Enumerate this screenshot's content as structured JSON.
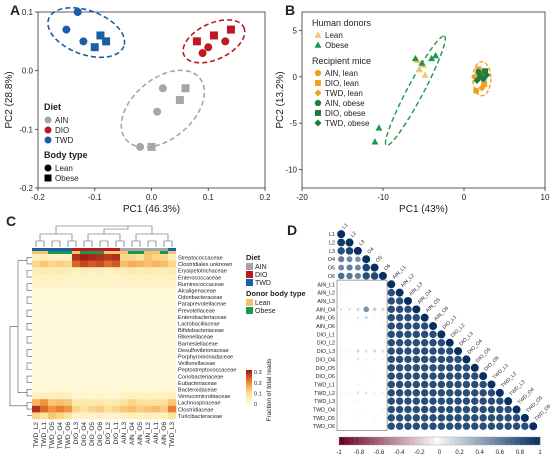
{
  "panel_labels": {
    "a": "A",
    "b": "B",
    "c": "C",
    "d": "D"
  },
  "chart_data": [
    {
      "id": "A",
      "type": "scatter",
      "xlabel": "PC1 (46.3%)",
      "ylabel": "PC2 (28.8%)",
      "xlim": [
        -0.2,
        0.2
      ],
      "ylim": [
        -0.2,
        0.1
      ],
      "xticks": [
        "-0.2",
        "-0.1",
        "0.0",
        "0.1",
        "0.2"
      ],
      "yticks": [
        "-0.2",
        "-0.1",
        "0.0",
        "0.1"
      ],
      "colors": {
        "AIN": "#a6a6a6",
        "DIO": "#c0181e",
        "TWD": "#1a5ea8"
      },
      "legend": {
        "title1": "Diet",
        "diet": [
          "AIN",
          "DIO",
          "TWD"
        ],
        "title2": "Body type",
        "body": [
          "Lean",
          "Obese"
        ]
      },
      "series": [
        {
          "name": "AIN",
          "points": [
            [
              0.02,
              -0.03,
              "circle"
            ],
            [
              0.01,
              -0.07,
              "circle"
            ],
            [
              -0.02,
              -0.13,
              "circle"
            ],
            [
              0.0,
              -0.13,
              "square"
            ],
            [
              0.05,
              -0.05,
              "square"
            ],
            [
              0.06,
              -0.03,
              "square"
            ]
          ]
        },
        {
          "name": "DIO",
          "points": [
            [
              0.1,
              0.04,
              "circle"
            ],
            [
              0.09,
              0.03,
              "circle"
            ],
            [
              0.13,
              0.05,
              "circle"
            ],
            [
              0.11,
              0.06,
              "square"
            ],
            [
              0.14,
              0.07,
              "square"
            ],
            [
              0.08,
              0.05,
              "square"
            ]
          ]
        },
        {
          "name": "TWD",
          "points": [
            [
              -0.15,
              0.07,
              "circle"
            ],
            [
              -0.12,
              0.05,
              "circle"
            ],
            [
              -0.13,
              0.1,
              "circle"
            ],
            [
              -0.09,
              0.06,
              "square"
            ],
            [
              -0.1,
              0.04,
              "square"
            ],
            [
              -0.08,
              0.05,
              "square"
            ]
          ]
        }
      ]
    },
    {
      "id": "B",
      "type": "scatter",
      "xlabel": "PC1 (43%)",
      "ylabel": "PC2 (13.2%)",
      "xlim": [
        -20,
        10
      ],
      "ylim": [
        -12,
        7
      ],
      "xticks": [
        "-20",
        "-10",
        "0",
        "10"
      ],
      "yticks": [
        "-10",
        "-5",
        "0",
        "5"
      ],
      "legend": {
        "title1": "Human donors",
        "donors": [
          "Lean",
          "Obese"
        ],
        "title2": "Recipient mice",
        "mice": [
          "AIN, lean",
          "DIO, lean",
          "TWD, lean",
          "AIN, obese",
          "DIO, obese",
          "TWD, obese"
        ]
      },
      "series": [
        {
          "name": "Lean",
          "points": [
            [
              -5.5,
              0.8
            ],
            [
              -5.0,
              1.3
            ],
            [
              -5.8,
              1.8
            ],
            [
              -4.8,
              0.2
            ]
          ]
        },
        {
          "name": "Obese",
          "points": [
            [
              -10.5,
              -5.5
            ],
            [
              -11.0,
              -7.0
            ],
            [
              -4.0,
              2.0
            ],
            [
              -3.5,
              2.3
            ],
            [
              -5.2,
              1.5
            ],
            [
              -6.0,
              2.0
            ]
          ]
        },
        {
          "name": "AIN, lean",
          "points": [
            [
              1.5,
              -1.5
            ],
            [
              2.0,
              0.5
            ]
          ]
        },
        {
          "name": "DIO, lean",
          "points": [
            [
              2.5,
              -0.8
            ],
            [
              1.8,
              0.8
            ]
          ]
        },
        {
          "name": "TWD, lean",
          "points": [
            [
              2.2,
              -1.2
            ],
            [
              1.3,
              0.0
            ]
          ]
        },
        {
          "name": "AIN, obese",
          "points": [
            [
              1.8,
              0.5
            ],
            [
              2.4,
              -0.2
            ]
          ]
        },
        {
          "name": "DIO, obese",
          "points": [
            [
              2.0,
              0.0
            ],
            [
              2.6,
              0.6
            ]
          ]
        },
        {
          "name": "TWD, obese",
          "points": [
            [
              2.8,
              0.2
            ],
            [
              1.6,
              -0.4
            ]
          ]
        }
      ]
    },
    {
      "id": "C",
      "type": "heatmap",
      "rows": [
        "Streptococcaceae",
        "Clostridiales unknown",
        "Erysipelotrichaceae",
        "Enterococcaceae",
        "Ruminococcaceae",
        "Alcaligenaceae",
        "Odoribacteraceae",
        "Paraprevotellaceae",
        "Prevotellaceae",
        "Enterobacteriaceae",
        "Lactobacillaceae",
        "Bifidobacteriaceae",
        "Rikenellaceae",
        "Barnesiellaceae",
        "Desulfovibrionaceae",
        "Porphyromonadaceae",
        "Veillonellaceae",
        "Peptostreptococcaceae",
        "Coriobacteriaceae",
        "Eubacteriaceae",
        "Bacteroidaceae",
        "Verrucomicrobiaceae",
        "Lachnospiraceae",
        "Clostridiaceae",
        "Turicibacteraceae"
      ],
      "columns": [
        "TWD_L2",
        "TWD_L1",
        "TWD_O5",
        "TWD_O4",
        "TWD_O6",
        "DIO_L3",
        "DIO_O4",
        "DIO_O5",
        "DIO_O6",
        "DIO_L2",
        "DIO_L1",
        "AIN_L3",
        "AIN_O4",
        "AIN_O5",
        "AIN_L2",
        "AIN_L1",
        "AIN_O6",
        "TWD_L3"
      ],
      "legend": {
        "title1": "Diet",
        "diet": [
          "AIN",
          "DIO",
          "TWD"
        ],
        "title2": "Donor body type",
        "body": [
          "Lean",
          "Obese"
        ],
        "scale_title": "Fraction of total reads",
        "scale_ticks": [
          "0",
          "0.1",
          "0.2",
          "0.3"
        ]
      },
      "values": [
        [
          0.05,
          0.06,
          0.04,
          0.05,
          0.05,
          0.3,
          0.32,
          0.31,
          0.3,
          0.29,
          0.3,
          0.12,
          0.12,
          0.1,
          0.14,
          0.12,
          0.12,
          0.06
        ],
        [
          0.12,
          0.14,
          0.12,
          0.13,
          0.12,
          0.25,
          0.28,
          0.26,
          0.27,
          0.24,
          0.26,
          0.15,
          0.17,
          0.16,
          0.15,
          0.16,
          0.15,
          0.12
        ],
        [
          0.06,
          0.07,
          0.06,
          0.07,
          0.06,
          0.05,
          0.06,
          0.05,
          0.06,
          0.05,
          0.06,
          0.06,
          0.07,
          0.06,
          0.07,
          0.06,
          0.06,
          0.07
        ],
        [
          0.04,
          0.05,
          0.04,
          0.05,
          0.04,
          0.03,
          0.04,
          0.03,
          0.04,
          0.03,
          0.03,
          0.04,
          0.05,
          0.04,
          0.05,
          0.04,
          0.04,
          0.05
        ],
        [
          0.03,
          0.04,
          0.03,
          0.04,
          0.03,
          0.03,
          0.04,
          0.03,
          0.04,
          0.03,
          0.03,
          0.04,
          0.04,
          0.03,
          0.04,
          0.03,
          0.03,
          0.04
        ],
        [
          0.02,
          0.02,
          0.02,
          0.02,
          0.02,
          0.01,
          0.02,
          0.01,
          0.02,
          0.01,
          0.01,
          0.02,
          0.02,
          0.02,
          0.02,
          0.02,
          0.02,
          0.02
        ],
        [
          0.01,
          0.01,
          0.01,
          0.01,
          0.01,
          0.01,
          0.01,
          0.01,
          0.01,
          0.01,
          0.01,
          0.01,
          0.01,
          0.01,
          0.01,
          0.01,
          0.01,
          0.01
        ],
        [
          0.01,
          0.01,
          0.01,
          0.01,
          0.01,
          0.01,
          0.01,
          0.01,
          0.01,
          0.01,
          0.01,
          0.01,
          0.01,
          0.01,
          0.01,
          0.01,
          0.01,
          0.01
        ],
        [
          0.01,
          0.01,
          0.01,
          0.01,
          0.01,
          0.01,
          0.01,
          0.01,
          0.01,
          0.01,
          0.01,
          0.01,
          0.01,
          0.01,
          0.01,
          0.01,
          0.01,
          0.01
        ],
        [
          0.01,
          0.01,
          0.01,
          0.01,
          0.01,
          0.01,
          0.01,
          0.01,
          0.01,
          0.01,
          0.01,
          0.01,
          0.01,
          0.01,
          0.01,
          0.01,
          0.01,
          0.01
        ],
        [
          0.01,
          0.01,
          0.01,
          0.01,
          0.01,
          0.01,
          0.01,
          0.01,
          0.01,
          0.01,
          0.01,
          0.01,
          0.01,
          0.01,
          0.01,
          0.01,
          0.01,
          0.01
        ],
        [
          0.01,
          0.01,
          0.01,
          0.01,
          0.01,
          0.01,
          0.01,
          0.01,
          0.01,
          0.01,
          0.01,
          0.01,
          0.01,
          0.01,
          0.01,
          0.01,
          0.01,
          0.01
        ],
        [
          0.01,
          0.01,
          0.01,
          0.01,
          0.01,
          0.01,
          0.01,
          0.01,
          0.01,
          0.01,
          0.01,
          0.01,
          0.01,
          0.01,
          0.01,
          0.01,
          0.01,
          0.01
        ],
        [
          0.01,
          0.01,
          0.01,
          0.01,
          0.01,
          0.01,
          0.01,
          0.01,
          0.01,
          0.01,
          0.01,
          0.01,
          0.01,
          0.01,
          0.01,
          0.01,
          0.01,
          0.01
        ],
        [
          0.01,
          0.01,
          0.01,
          0.01,
          0.01,
          0.01,
          0.01,
          0.01,
          0.01,
          0.01,
          0.01,
          0.01,
          0.01,
          0.01,
          0.01,
          0.01,
          0.01,
          0.01
        ],
        [
          0.01,
          0.01,
          0.01,
          0.01,
          0.01,
          0.01,
          0.01,
          0.01,
          0.01,
          0.01,
          0.01,
          0.01,
          0.01,
          0.01,
          0.01,
          0.01,
          0.01,
          0.01
        ],
        [
          0.01,
          0.01,
          0.01,
          0.01,
          0.01,
          0.01,
          0.01,
          0.01,
          0.01,
          0.01,
          0.01,
          0.01,
          0.01,
          0.01,
          0.01,
          0.01,
          0.01,
          0.01
        ],
        [
          0.01,
          0.01,
          0.01,
          0.01,
          0.01,
          0.01,
          0.01,
          0.01,
          0.01,
          0.01,
          0.01,
          0.01,
          0.01,
          0.01,
          0.01,
          0.01,
          0.01,
          0.01
        ],
        [
          0.01,
          0.01,
          0.01,
          0.01,
          0.01,
          0.01,
          0.01,
          0.01,
          0.01,
          0.01,
          0.01,
          0.01,
          0.01,
          0.01,
          0.01,
          0.01,
          0.01,
          0.01
        ],
        [
          0.01,
          0.01,
          0.01,
          0.01,
          0.01,
          0.01,
          0.01,
          0.01,
          0.01,
          0.01,
          0.01,
          0.01,
          0.01,
          0.01,
          0.01,
          0.01,
          0.01,
          0.01
        ],
        [
          0.02,
          0.02,
          0.02,
          0.02,
          0.02,
          0.01,
          0.02,
          0.01,
          0.02,
          0.01,
          0.01,
          0.02,
          0.02,
          0.02,
          0.02,
          0.02,
          0.02,
          0.02
        ],
        [
          0.05,
          0.06,
          0.05,
          0.06,
          0.05,
          0.02,
          0.03,
          0.02,
          0.03,
          0.02,
          0.02,
          0.04,
          0.05,
          0.04,
          0.05,
          0.04,
          0.04,
          0.06
        ],
        [
          0.16,
          0.2,
          0.14,
          0.15,
          0.14,
          0.08,
          0.09,
          0.08,
          0.08,
          0.07,
          0.08,
          0.1,
          0.12,
          0.11,
          0.1,
          0.1,
          0.11,
          0.14
        ],
        [
          0.3,
          0.24,
          0.2,
          0.22,
          0.2,
          0.12,
          0.1,
          0.12,
          0.13,
          0.11,
          0.12,
          0.14,
          0.15,
          0.13,
          0.14,
          0.15,
          0.13,
          0.22
        ],
        [
          0.12,
          0.1,
          0.14,
          0.12,
          0.1,
          0.03,
          0.04,
          0.03,
          0.04,
          0.03,
          0.03,
          0.05,
          0.06,
          0.05,
          0.06,
          0.05,
          0.05,
          0.1
        ]
      ],
      "col_diet": [
        "TWD",
        "TWD",
        "TWD",
        "TWD",
        "TWD",
        "DIO",
        "DIO",
        "DIO",
        "DIO",
        "DIO",
        "DIO",
        "AIN",
        "AIN",
        "AIN",
        "AIN",
        "AIN",
        "AIN",
        "TWD"
      ],
      "col_body": [
        "Lean",
        "Lean",
        "Obese",
        "Obese",
        "Obese",
        "Lean",
        "Obese",
        "Obese",
        "Obese",
        "Lean",
        "Lean",
        "Lean",
        "Obese",
        "Obese",
        "Lean",
        "Lean",
        "Obese",
        "Lean"
      ]
    },
    {
      "id": "D",
      "type": "heatmap",
      "donors": [
        "L1",
        "L2",
        "L3",
        "O4",
        "O5",
        "O6"
      ],
      "mice": [
        "AIN_L1",
        "AIN_L2",
        "AIN_L3",
        "AIN_O4",
        "AIN_O5",
        "AIN_O6",
        "DIO_L1",
        "DIO_L2",
        "DIO_L3",
        "DIO_O4",
        "DIO_O5",
        "DIO_O6",
        "TWD_L1",
        "TWD_L2",
        "TWD_L3",
        "TWD_O4",
        "TWD_O5",
        "TWD_O6"
      ],
      "scale_ticks": [
        "-1",
        "-0.8",
        "-0.6",
        "-0.4",
        "-0.2",
        "0",
        "0.2",
        "0.4",
        "0.6",
        "0.8",
        "1"
      ],
      "donor_corr": [
        [
          1.0
        ],
        [
          0.95,
          1.0
        ],
        [
          0.85,
          0.9,
          1.0
        ],
        [
          0.6,
          0.55,
          0.5,
          1.0
        ],
        [
          0.55,
          0.6,
          0.55,
          0.9,
          1.0
        ],
        [
          0.7,
          0.65,
          0.6,
          0.85,
          0.88,
          1.0
        ]
      ],
      "mouse_donor_corr": [
        [
          0.05,
          0.05,
          0.0,
          0.0,
          0.0,
          0.0
        ],
        [
          0.05,
          0.05,
          0.0,
          0.0,
          0.0,
          0.0
        ],
        [
          0.0,
          0.0,
          0.0,
          0.0,
          0.0,
          0.0
        ],
        [
          0.1,
          0.1,
          0.15,
          0.5,
          0.2,
          0.15
        ],
        [
          0.05,
          0.05,
          0.1,
          0.15,
          0.05,
          0.05
        ],
        [
          0.05,
          0.0,
          0.05,
          0.05,
          0.0,
          0.05
        ],
        [
          0.0,
          0.0,
          0.0,
          0.0,
          0.0,
          0.0
        ],
        [
          0.0,
          0.0,
          0.0,
          0.0,
          0.0,
          0.0
        ],
        [
          0.05,
          0.05,
          0.15,
          0.1,
          0.15,
          0.1
        ],
        [
          0.05,
          0.05,
          0.1,
          0.05,
          0.05,
          0.05
        ],
        [
          0.05,
          0.0,
          0.0,
          0.05,
          0.0,
          0.0
        ],
        [
          0.0,
          0.0,
          0.0,
          0.0,
          0.05,
          0.0
        ],
        [
          0.0,
          0.0,
          0.05,
          0.0,
          0.0,
          0.0
        ],
        [
          0.05,
          0.05,
          0.1,
          0.1,
          0.05,
          0.05
        ],
        [
          0.0,
          0.0,
          0.05,
          0.0,
          0.0,
          0.0
        ],
        [
          0.05,
          0.0,
          0.05,
          0.05,
          0.0,
          0.05
        ],
        [
          0.0,
          0.0,
          0.05,
          0.0,
          0.05,
          0.0
        ],
        [
          0.0,
          0.0,
          0.0,
          0.0,
          0.0,
          0.0
        ]
      ],
      "mouse_mouse_corr_default": 0.85
    }
  ]
}
